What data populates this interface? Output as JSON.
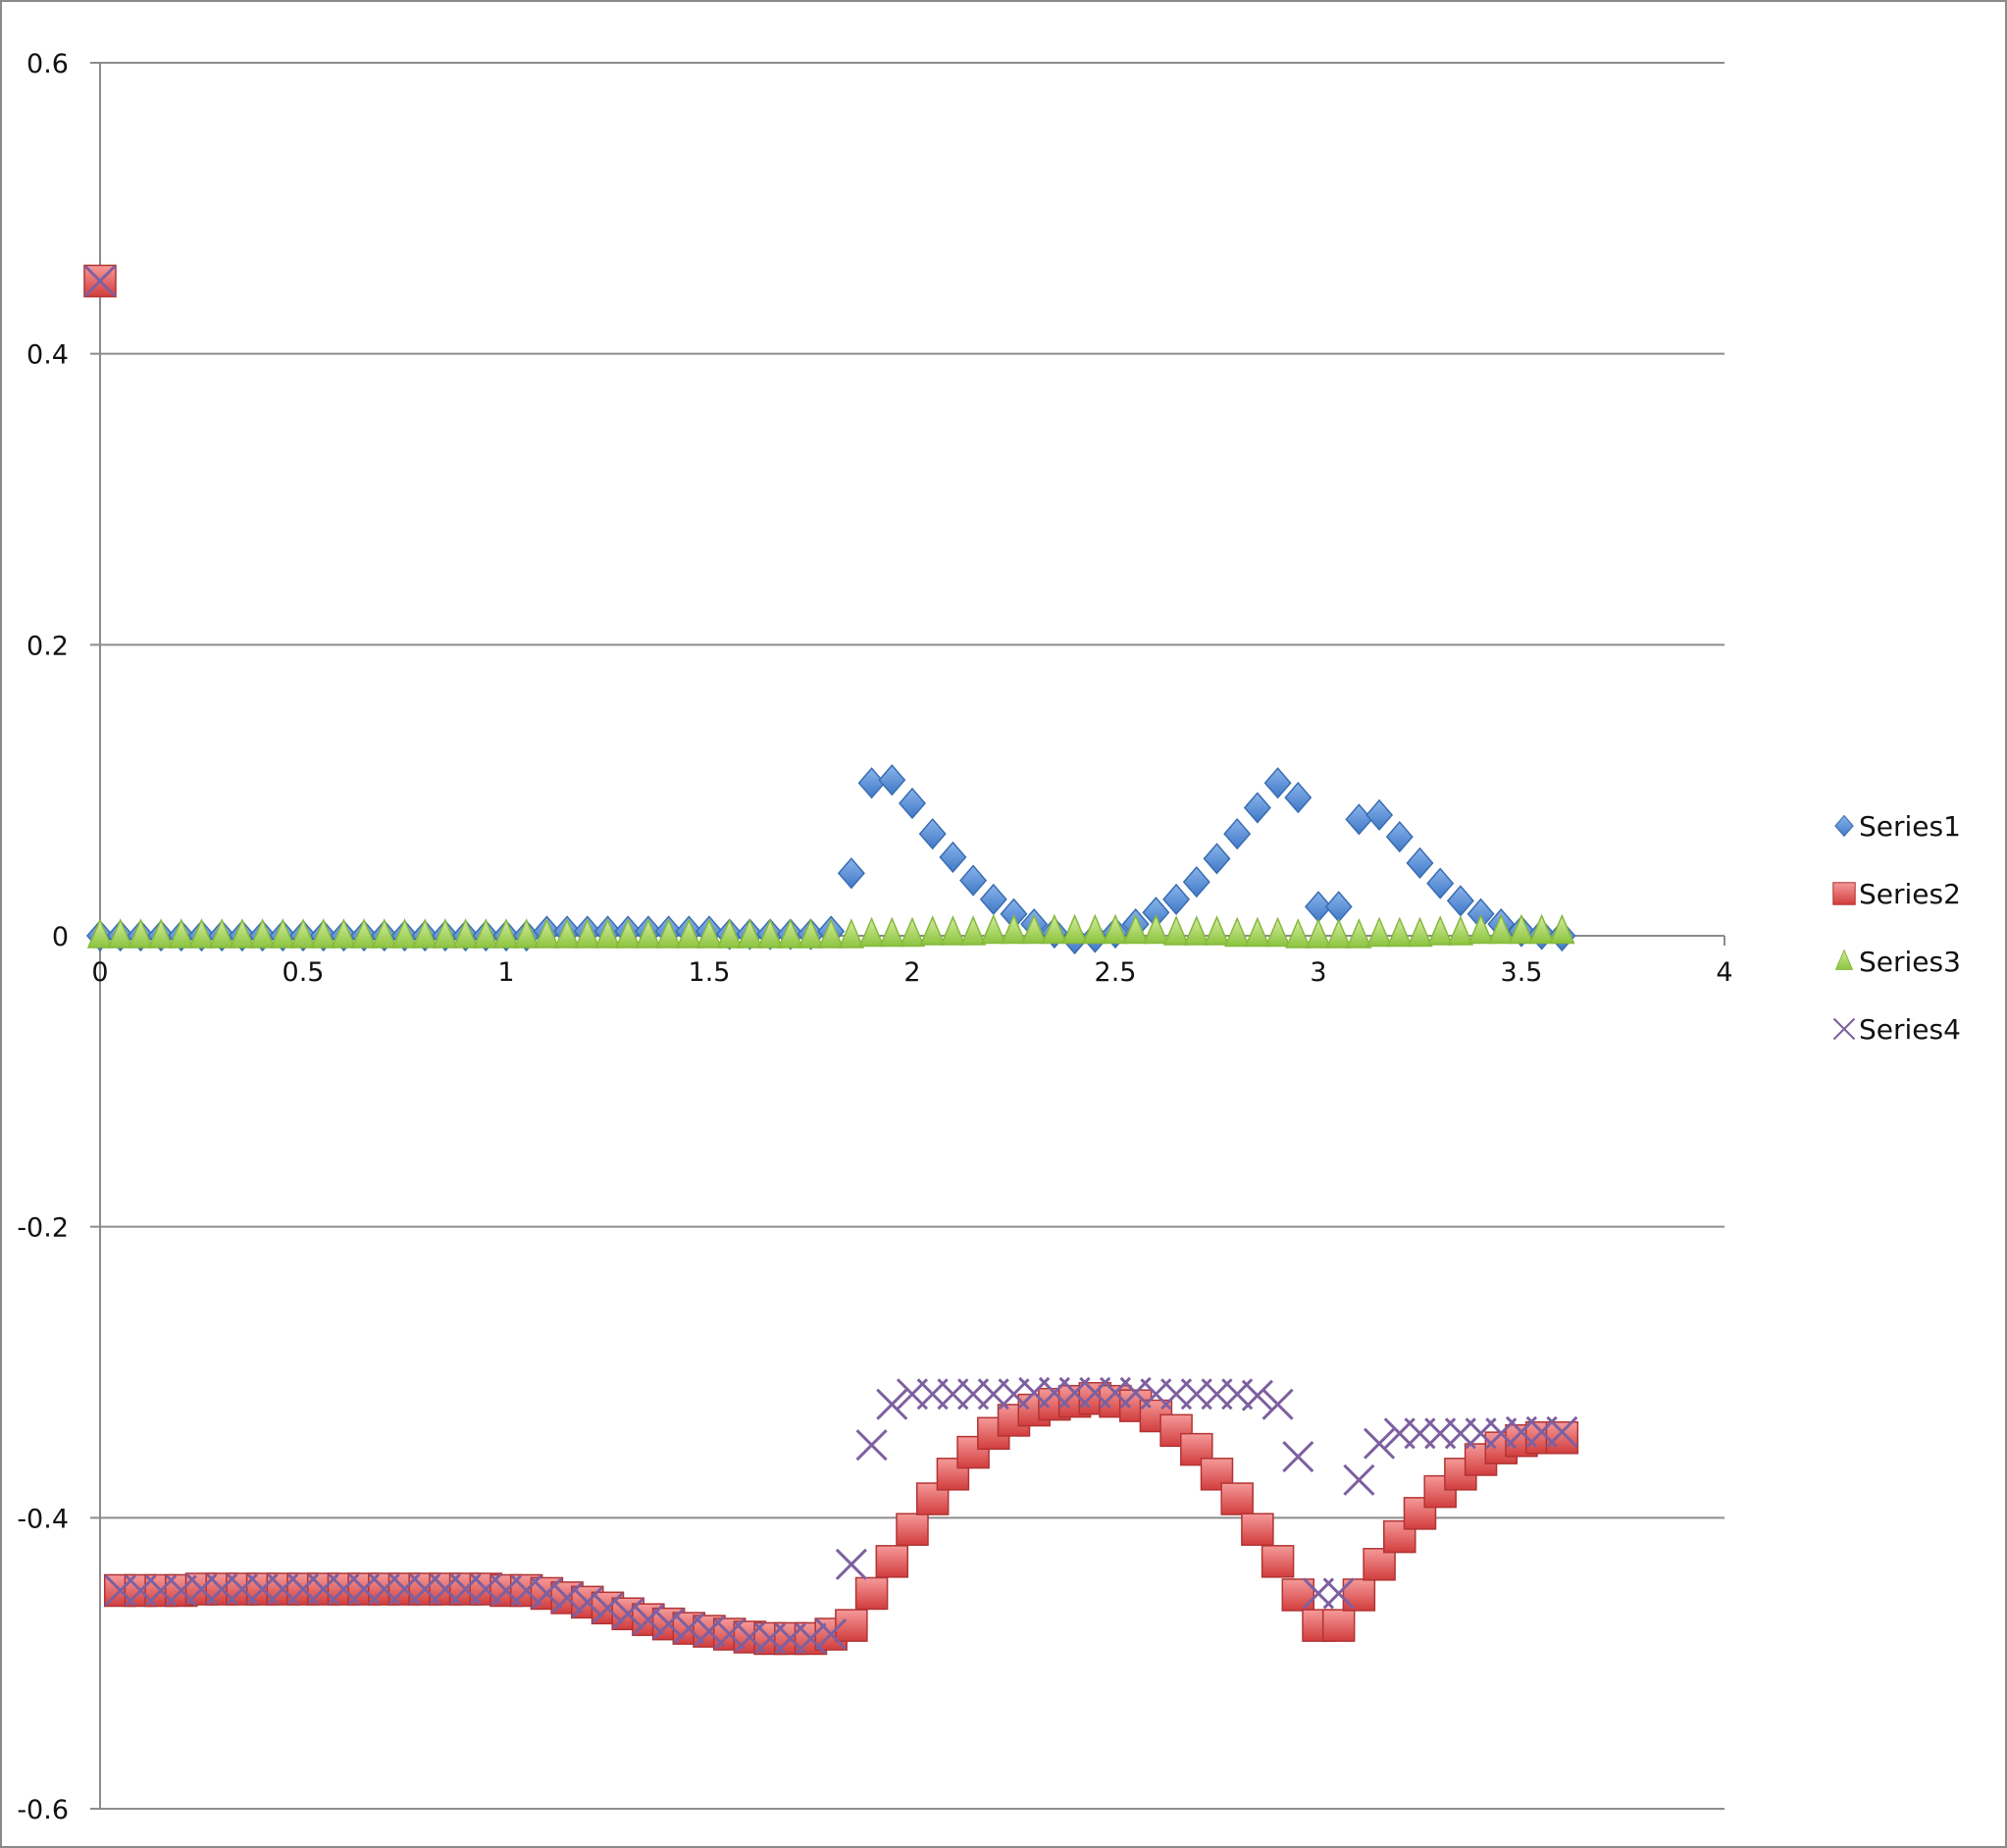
{
  "chart_data": {
    "type": "scatter",
    "title": "",
    "xlabel": "",
    "ylabel": "",
    "xlim": [
      0,
      4
    ],
    "ylim": [
      -0.6,
      0.6
    ],
    "x_ticks": [
      "0",
      "0.5",
      "1",
      "1.5",
      "2",
      "2.5",
      "3",
      "3.5",
      "4"
    ],
    "y_ticks": [
      "0.6",
      "0.4",
      "0.2",
      "0",
      "-0.2",
      "-0.4",
      "-0.6"
    ],
    "grid": "horizontal",
    "legend_position": "right",
    "x": [
      0,
      0.05,
      0.1,
      0.15,
      0.2,
      0.25,
      0.3,
      0.35,
      0.4,
      0.45,
      0.5,
      0.55,
      0.6,
      0.65,
      0.7,
      0.75,
      0.8,
      0.85,
      0.9,
      0.95,
      1.0,
      1.05,
      1.1,
      1.15,
      1.2,
      1.25,
      1.3,
      1.35,
      1.4,
      1.45,
      1.5,
      1.55,
      1.6,
      1.65,
      1.7,
      1.75,
      1.8,
      1.85,
      1.9,
      1.95,
      2.0,
      2.05,
      2.1,
      2.15,
      2.2,
      2.25,
      2.3,
      2.35,
      2.4,
      2.45,
      2.5,
      2.55,
      2.6,
      2.65,
      2.7,
      2.75,
      2.8,
      2.85,
      2.9,
      2.95,
      3.0,
      3.05,
      3.1,
      3.15,
      3.2,
      3.25,
      3.3,
      3.35,
      3.4,
      3.45,
      3.5,
      3.55,
      3.6
    ],
    "series": [
      {
        "name": "Series1",
        "marker": "diamond",
        "color": "#4a7ebb",
        "values": [
          0,
          0,
          0,
          0,
          0,
          0,
          0,
          0,
          0,
          0,
          0,
          0,
          0,
          0,
          0,
          0,
          0,
          0,
          0,
          0,
          0,
          0,
          0.003,
          0.003,
          0.003,
          0.003,
          0.003,
          0.003,
          0.003,
          0.003,
          0.003,
          0.001,
          0.001,
          0.001,
          0.001,
          0.001,
          0.003,
          0.043,
          0.105,
          0.107,
          0.091,
          0.07,
          0.054,
          0.038,
          0.025,
          0.015,
          0.008,
          0.002,
          -0.002,
          -0.001,
          0.002,
          0.008,
          0.016,
          0.025,
          0.037,
          0.053,
          0.07,
          0.088,
          0.105,
          0.095,
          0.02,
          0.02,
          0.08,
          0.083,
          0.068,
          0.05,
          0.036,
          0.024,
          0.015,
          0.008,
          0.003,
          0.001,
          0
        ]
      },
      {
        "name": "Series2",
        "marker": "square",
        "color": "#e05a5a",
        "values": [
          0.45,
          -0.45,
          -0.45,
          -0.45,
          -0.45,
          -0.449,
          -0.449,
          -0.449,
          -0.449,
          -0.449,
          -0.449,
          -0.449,
          -0.449,
          -0.449,
          -0.449,
          -0.449,
          -0.449,
          -0.449,
          -0.449,
          -0.449,
          -0.45,
          -0.45,
          -0.452,
          -0.455,
          -0.458,
          -0.462,
          -0.466,
          -0.47,
          -0.473,
          -0.476,
          -0.478,
          -0.48,
          -0.482,
          -0.483,
          -0.483,
          -0.483,
          -0.48,
          -0.474,
          -0.452,
          -0.43,
          -0.408,
          -0.387,
          -0.37,
          -0.355,
          -0.342,
          -0.333,
          -0.326,
          -0.322,
          -0.32,
          -0.318,
          -0.32,
          -0.323,
          -0.33,
          -0.34,
          -0.353,
          -0.37,
          -0.387,
          -0.408,
          -0.43,
          -0.453,
          -0.474,
          -0.474,
          -0.453,
          -0.432,
          -0.413,
          -0.397,
          -0.382,
          -0.37,
          -0.36,
          -0.352,
          -0.347,
          -0.345,
          -0.345
        ]
      },
      {
        "name": "Series3",
        "marker": "triangle",
        "color": "#9bbb59",
        "values": [
          0,
          0,
          0,
          0,
          0,
          0,
          0,
          0,
          0,
          0,
          0,
          0,
          0,
          0,
          0,
          0,
          0,
          0,
          0,
          0,
          0,
          0,
          0,
          0,
          0,
          0,
          0,
          0,
          0,
          0,
          0,
          0,
          0,
          0,
          0,
          0,
          0,
          0,
          0.001,
          0.001,
          0.001,
          0.002,
          0.002,
          0.002,
          0.003,
          0.003,
          0.003,
          0.003,
          0.003,
          0.003,
          0.003,
          0.003,
          0.003,
          0.002,
          0.002,
          0.002,
          0.001,
          0.001,
          0.001,
          0,
          0,
          0,
          0,
          0.001,
          0.001,
          0.001,
          0.002,
          0.002,
          0.003,
          0.003,
          0.003,
          0.003,
          0.003
        ]
      },
      {
        "name": "Series4",
        "marker": "x",
        "color": "#7d60a0",
        "values": [
          0.45,
          -0.45,
          -0.45,
          -0.45,
          -0.45,
          -0.449,
          -0.449,
          -0.449,
          -0.449,
          -0.449,
          -0.449,
          -0.449,
          -0.449,
          -0.449,
          -0.449,
          -0.449,
          -0.449,
          -0.449,
          -0.449,
          -0.449,
          -0.45,
          -0.45,
          -0.452,
          -0.455,
          -0.458,
          -0.462,
          -0.466,
          -0.47,
          -0.473,
          -0.476,
          -0.478,
          -0.48,
          -0.482,
          -0.483,
          -0.483,
          -0.483,
          -0.48,
          -0.432,
          -0.35,
          -0.322,
          -0.315,
          -0.315,
          -0.315,
          -0.315,
          -0.315,
          -0.315,
          -0.314,
          -0.314,
          -0.314,
          -0.314,
          -0.314,
          -0.314,
          -0.315,
          -0.315,
          -0.315,
          -0.315,
          -0.315,
          -0.316,
          -0.322,
          -0.358,
          -0.452,
          -0.452,
          -0.374,
          -0.349,
          -0.342,
          -0.342,
          -0.342,
          -0.342,
          -0.342,
          -0.342,
          -0.341,
          -0.341,
          -0.341
        ]
      }
    ]
  }
}
